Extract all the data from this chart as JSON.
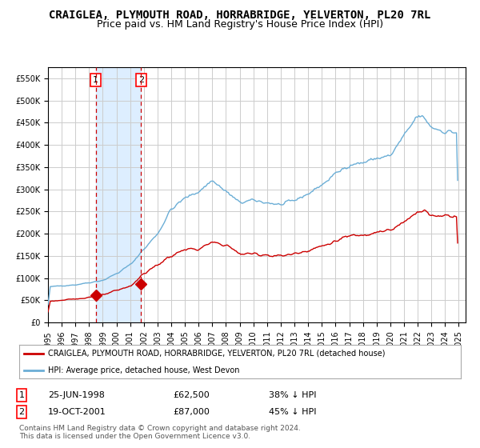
{
  "title": "CRAIGLEA, PLYMOUTH ROAD, HORRABRIDGE, YELVERTON, PL20 7RL",
  "subtitle": "Price paid vs. HM Land Registry's House Price Index (HPI)",
  "title_fontsize": 10,
  "subtitle_fontsize": 9,
  "hpi_color": "#6baed6",
  "price_color": "#cc0000",
  "bg_color": "#ffffff",
  "plot_bg_color": "#ffffff",
  "grid_color": "#cccccc",
  "shade_color": "#ddeeff",
  "transaction1_date_num": 1998.49,
  "transaction2_date_num": 2001.8,
  "transaction1_price": 62500,
  "transaction2_price": 87000,
  "transaction1_label": "1",
  "transaction2_label": "2",
  "legend_hpi_label": "HPI: Average price, detached house, West Devon",
  "legend_price_label": "CRAIGLEA, PLYMOUTH ROAD, HORRABRIDGE, YELVERTON, PL20 7RL (detached house)",
  "table_row1": [
    "1",
    "25-JUN-1998",
    "£62,500",
    "38% ↓ HPI"
  ],
  "table_row2": [
    "2",
    "19-OCT-2001",
    "£87,000",
    "45% ↓ HPI"
  ],
  "copyright_text": "Contains HM Land Registry data © Crown copyright and database right 2024.\nThis data is licensed under the Open Government Licence v3.0.",
  "ylim": [
    0,
    575000
  ],
  "yticks": [
    0,
    50000,
    100000,
    150000,
    200000,
    250000,
    300000,
    350000,
    400000,
    450000,
    500000,
    550000
  ],
  "xlim_start": 1995.0,
  "xlim_end": 2025.5,
  "xticks": [
    1995,
    1996,
    1997,
    1998,
    1999,
    2000,
    2001,
    2002,
    2003,
    2004,
    2005,
    2006,
    2007,
    2008,
    2009,
    2010,
    2011,
    2012,
    2013,
    2014,
    2015,
    2016,
    2017,
    2018,
    2019,
    2020,
    2021,
    2022,
    2023,
    2024,
    2025
  ],
  "hpi_years": [
    1995,
    1996,
    1997,
    1998,
    1999,
    2000,
    2001,
    2002,
    2003,
    2004,
    2005,
    2006,
    2007,
    2008,
    2009,
    2010,
    2011,
    2012,
    2013,
    2014,
    2015,
    2016,
    2017,
    2018,
    2019,
    2020,
    2021,
    2022,
    2022.5,
    2023,
    2024,
    2025
  ],
  "hpi_prices": [
    80000,
    83000,
    85000,
    90000,
    95000,
    110000,
    130000,
    165000,
    200000,
    255000,
    280000,
    295000,
    320000,
    295000,
    270000,
    275000,
    270000,
    265000,
    275000,
    290000,
    310000,
    335000,
    355000,
    360000,
    370000,
    375000,
    420000,
    465000,
    460000,
    440000,
    430000,
    428000
  ],
  "red_years": [
    1995,
    1996,
    1997,
    1998,
    1999,
    2000,
    2001,
    2002,
    2003,
    2004,
    2005,
    2006,
    2007,
    2008,
    2009,
    2010,
    2011,
    2012,
    2013,
    2014,
    2015,
    2016,
    2017,
    2018,
    2019,
    2020,
    2021,
    2022,
    2022.5,
    2023,
    2024,
    2025
  ],
  "red_prices": [
    48000,
    50000,
    53000,
    57000,
    62000,
    72000,
    82000,
    110000,
    130000,
    150000,
    165000,
    165000,
    180000,
    175000,
    155000,
    155000,
    152000,
    150000,
    155000,
    163000,
    172000,
    183000,
    195000,
    198000,
    205000,
    207000,
    225000,
    252000,
    252000,
    240000,
    242000,
    240000
  ]
}
